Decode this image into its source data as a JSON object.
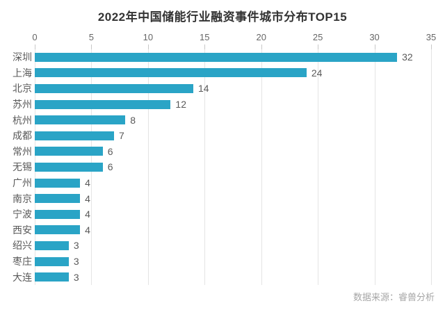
{
  "title": "2022年中国储能行业融资事件城市分布TOP15",
  "source": "数据来源：睿兽分析",
  "colors": {
    "bar": "#2aa4c6",
    "grid": "#e4e4e4",
    "tick": "#c8c8c8",
    "title_text": "#333333",
    "axis_text": "#666666",
    "label_text": "#595959",
    "source_text": "#a6a6a6",
    "background": "#ffffff"
  },
  "chart_data": {
    "type": "bar",
    "orientation": "horizontal",
    "title": "2022年中国储能行业融资事件城市分布TOP15",
    "categories": [
      "深圳",
      "上海",
      "北京",
      "苏州",
      "杭州",
      "成都",
      "常州",
      "无锡",
      "广州",
      "南京",
      "宁波",
      "西安",
      "绍兴",
      "枣庄",
      "大连"
    ],
    "values": [
      32,
      24,
      14,
      12,
      8,
      7,
      6,
      6,
      4,
      4,
      4,
      4,
      3,
      3,
      3
    ],
    "xlabel": "",
    "ylabel": "",
    "xlim": [
      0,
      35
    ],
    "xticks": [
      0,
      5,
      10,
      15,
      20,
      25,
      30,
      35
    ],
    "grid": true,
    "value_labels": true,
    "legend": false
  }
}
